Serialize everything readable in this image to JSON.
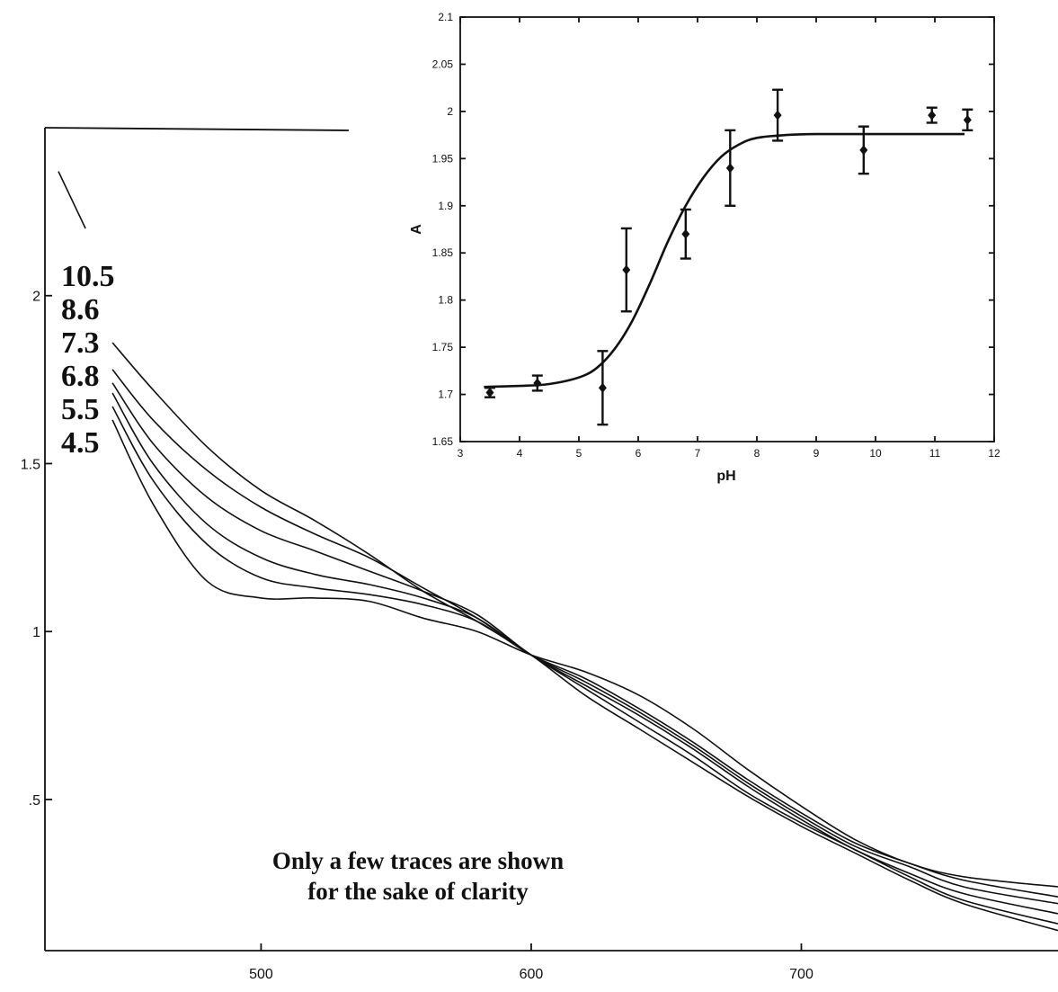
{
  "chart_data": [
    {
      "type": "line",
      "x_ticks": [
        500,
        600,
        700
      ],
      "y_ticks": [
        {
          "value": 0.5,
          "label": ".5"
        },
        {
          "value": 1,
          "label": "1"
        },
        {
          "value": 1.5,
          "label": "1.5"
        },
        {
          "value": 2,
          "label": "2"
        }
      ],
      "xlim": [
        420,
        795
      ],
      "ylim": [
        0.05,
        2.5
      ],
      "ph_labels": [
        "10.5",
        "8.6",
        "7.3",
        "6.8",
        "5.5",
        "4.5"
      ],
      "annotation": [
        "Only a few traces are shown",
        "for the sake of clarity"
      ],
      "series": [
        {
          "x": [
            445,
            460,
            480,
            500,
            520,
            540,
            560,
            580,
            600,
            620,
            640,
            660,
            680,
            700,
            720,
            740,
            760,
            795
          ],
          "y": [
            1.86,
            1.72,
            1.55,
            1.42,
            1.33,
            1.23,
            1.12,
            1.03,
            0.93,
            0.81,
            0.71,
            0.61,
            0.51,
            0.42,
            0.34,
            0.26,
            0.19,
            0.11
          ]
        },
        {
          "x": [
            445,
            460,
            480,
            500,
            520,
            540,
            560,
            580,
            600,
            620,
            640,
            660,
            680,
            700,
            720,
            740,
            760,
            795
          ],
          "y": [
            1.78,
            1.63,
            1.48,
            1.37,
            1.29,
            1.22,
            1.13,
            1.04,
            0.93,
            0.83,
            0.73,
            0.63,
            0.52,
            0.43,
            0.35,
            0.27,
            0.2,
            0.13
          ]
        },
        {
          "x": [
            445,
            460,
            480,
            500,
            520,
            540,
            560,
            580,
            600,
            620,
            640,
            660,
            680,
            700,
            720,
            740,
            760,
            795
          ],
          "y": [
            1.74,
            1.56,
            1.4,
            1.3,
            1.24,
            1.18,
            1.12,
            1.05,
            0.93,
            0.84,
            0.75,
            0.65,
            0.54,
            0.44,
            0.35,
            0.28,
            0.22,
            0.16
          ]
        },
        {
          "x": [
            445,
            460,
            480,
            500,
            520,
            540,
            560,
            580,
            600,
            620,
            640,
            660,
            680,
            700,
            720,
            740,
            760,
            795
          ],
          "y": [
            1.71,
            1.5,
            1.32,
            1.22,
            1.17,
            1.14,
            1.1,
            1.04,
            0.93,
            0.85,
            0.76,
            0.66,
            0.55,
            0.45,
            0.36,
            0.3,
            0.24,
            0.19
          ]
        },
        {
          "x": [
            445,
            460,
            480,
            500,
            520,
            540,
            560,
            580,
            600,
            620,
            640,
            660,
            680,
            700,
            720,
            740,
            760,
            795
          ],
          "y": [
            1.67,
            1.45,
            1.26,
            1.16,
            1.13,
            1.11,
            1.08,
            1.03,
            0.93,
            0.86,
            0.77,
            0.67,
            0.56,
            0.46,
            0.37,
            0.31,
            0.26,
            0.21
          ]
        },
        {
          "x": [
            445,
            460,
            480,
            500,
            520,
            540,
            560,
            580,
            600,
            620,
            640,
            660,
            680,
            700,
            720,
            740,
            760,
            795
          ],
          "y": [
            1.63,
            1.38,
            1.15,
            1.1,
            1.1,
            1.09,
            1.04,
            1,
            0.93,
            0.88,
            0.81,
            0.71,
            0.59,
            0.48,
            0.38,
            0.31,
            0.27,
            0.24
          ]
        },
        {
          "x": [
            425,
            435
          ],
          "y": [
            2.37,
            2.2
          ]
        }
      ]
    },
    {
      "type": "scatter",
      "title": "",
      "xlabel": "pH",
      "ylabel": "A",
      "xlim": [
        3,
        12
      ],
      "ylim": [
        1.65,
        2.1
      ],
      "x_ticks": [
        3,
        4,
        5,
        6,
        7,
        8,
        9,
        10,
        11,
        12
      ],
      "y_ticks": [
        1.65,
        1.7,
        1.75,
        1.8,
        1.85,
        1.9,
        1.95,
        2,
        2.05,
        2.1
      ],
      "points": [
        {
          "x": 3.5,
          "y": 1.702,
          "low": 1.697,
          "high": 1.707
        },
        {
          "x": 4.3,
          "y": 1.712,
          "low": 1.704,
          "high": 1.72
        },
        {
          "x": 5.4,
          "y": 1.707,
          "low": 1.668,
          "high": 1.746
        },
        {
          "x": 5.8,
          "y": 1.832,
          "low": 1.788,
          "high": 1.876
        },
        {
          "x": 6.8,
          "y": 1.87,
          "low": 1.844,
          "high": 1.896
        },
        {
          "x": 7.55,
          "y": 1.94,
          "low": 1.9,
          "high": 1.98
        },
        {
          "x": 8.35,
          "y": 1.996,
          "low": 1.969,
          "high": 2.023
        },
        {
          "x": 9.8,
          "y": 1.959,
          "low": 1.934,
          "high": 1.984
        },
        {
          "x": 10.95,
          "y": 1.996,
          "low": 1.988,
          "high": 2.004
        },
        {
          "x": 11.55,
          "y": 1.991,
          "low": 1.98,
          "high": 2.002
        }
      ],
      "fit_line": {
        "x": [
          3.4,
          4,
          4.5,
          5,
          5.3,
          5.6,
          5.9,
          6.2,
          6.5,
          6.8,
          7.1,
          7.4,
          7.7,
          8,
          8.5,
          9,
          10,
          11.5
        ],
        "y": [
          1.708,
          1.709,
          1.711,
          1.718,
          1.728,
          1.748,
          1.778,
          1.818,
          1.862,
          1.9,
          1.93,
          1.952,
          1.965,
          1.972,
          1.975,
          1.976,
          1.976,
          1.976
        ]
      }
    }
  ]
}
